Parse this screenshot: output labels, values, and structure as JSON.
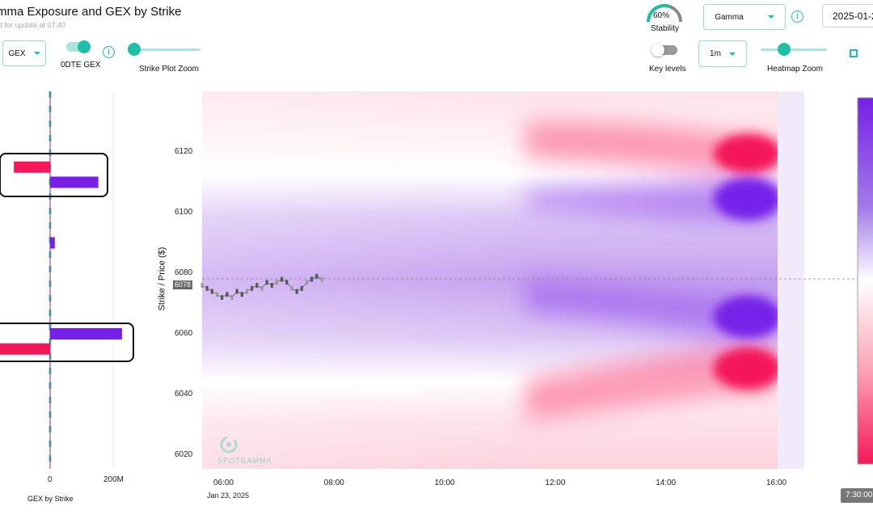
{
  "header": {
    "title": "mma Exposure and GEX by Strike",
    "subtitle": "d for update at 07:40"
  },
  "controls": {
    "metric_select": "GEX",
    "odte_label": "0DTE GEX",
    "odte_on": true,
    "strike_zoom_label": "Strike Plot Zoom",
    "stability_value": "60%",
    "stability_fraction": 0.6,
    "stability_label": "Stability",
    "greek_select": "Gamma",
    "date_value": "2025-01-2",
    "key_levels_label": "Key levels",
    "key_levels_on": false,
    "interval_select": "1m",
    "heatmap_zoom_label": "Heatmap Zoom"
  },
  "colors": {
    "accent": "#1dbfa6",
    "positive": "#7620e8",
    "negative": "#f5175a"
  },
  "gex_chart": {
    "xlabel": "GEX by Strike",
    "xticks": [
      "0",
      "200M"
    ],
    "bars": [
      {
        "strike": 6115,
        "value_m": -115
      },
      {
        "strike": 6110,
        "value_m": 153
      },
      {
        "strike": 6090,
        "value_m": 15
      },
      {
        "strike": 6060,
        "value_m": 228
      },
      {
        "strike": 6055,
        "value_m": -170
      }
    ]
  },
  "heatmap": {
    "ylabel": "Strike / Price ($)",
    "yticks": [
      "6120",
      "6100",
      "6080",
      "6060",
      "6040",
      "6020"
    ],
    "xticks": [
      "06:00",
      "08:00",
      "10:00",
      "12:00",
      "14:00",
      "16:00"
    ],
    "date_label": "Jan 23, 2025",
    "current_price": "6078",
    "prices": [
      6076,
      6075,
      6074,
      6073,
      6072,
      6073,
      6072,
      6074,
      6073,
      6074,
      6075,
      6076,
      6075,
      6077,
      6076,
      6077,
      6078,
      6077,
      6075,
      6074,
      6075,
      6077,
      6078,
      6079,
      6078
    ],
    "watermark": "SPOTGAMMA"
  },
  "time_tooltip": "7:30:00"
}
